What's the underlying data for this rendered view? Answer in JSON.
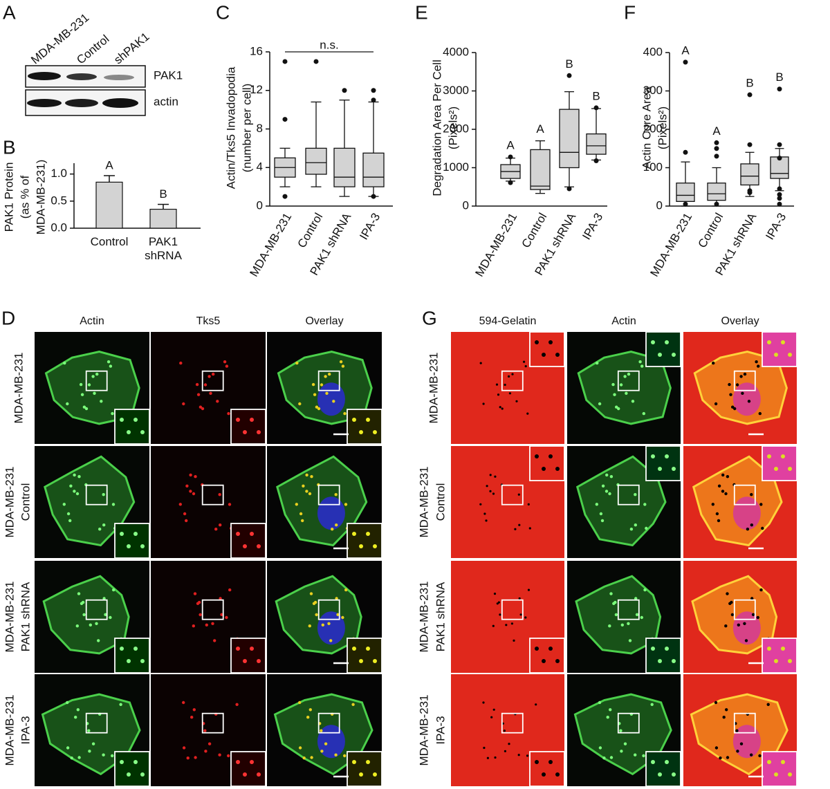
{
  "blot": {
    "panel": "A",
    "lanes": [
      "MDA-MB-231",
      "Control",
      "shPAK1"
    ],
    "bands": [
      "PAK1",
      "actin"
    ]
  },
  "chart_data": [
    {
      "type": "bar",
      "panel": "B",
      "ylabel": [
        "PAK1 Protein",
        "(as % of",
        "MDA-MB-231)"
      ],
      "categories": [
        "Control",
        "PAK1 shRNA"
      ],
      "values": [
        0.85,
        0.35
      ],
      "errors": [
        0.12,
        0.09
      ],
      "letters": [
        "A",
        "B"
      ],
      "color": "#d3d3d3",
      "ylim": [
        0,
        1.2
      ],
      "yticks": [
        {
          "value": 0,
          "label": "0.0"
        },
        {
          "value": 0.5,
          "label": "0.5"
        },
        {
          "value": 1,
          "label": "1.0"
        }
      ]
    },
    {
      "type": "box",
      "panel": "C",
      "ylabel": [
        "Actin/Tks5 Invadopodia",
        "(number per cell)"
      ],
      "annotation": "n.s.",
      "categories": [
        "MDA-MB-231",
        "Control",
        "PAK1 shRNA",
        "IPA-3"
      ],
      "color": "#d3d3d3",
      "boxes": [
        {
          "whisker_low": 2,
          "q1": 3,
          "median": 4,
          "q3": 5,
          "whisker_high": 6,
          "outliers": [
            15,
            9,
            1
          ]
        },
        {
          "whisker_low": 2,
          "q1": 3.3,
          "median": 4.5,
          "q3": 6,
          "whisker_high": 10.8,
          "outliers": [
            15
          ]
        },
        {
          "whisker_low": 1,
          "q1": 2,
          "median": 3,
          "q3": 6,
          "whisker_high": 11,
          "outliers": [
            12
          ]
        },
        {
          "whisker_low": 1,
          "q1": 2,
          "median": 3,
          "q3": 5.5,
          "whisker_high": 10.8,
          "outliers": [
            12,
            11,
            1
          ]
        }
      ],
      "ylim": [
        0,
        16
      ],
      "yticks": [
        0,
        4,
        8,
        12,
        16
      ]
    },
    {
      "type": "box",
      "panel": "E",
      "ylabel": [
        "Degradation Area Per Cell",
        "(Pixels²)"
      ],
      "categories": [
        "MDA-MB-231",
        "Control",
        "PAK1 shRNA",
        "IPA-3"
      ],
      "letters": [
        "A",
        "A",
        "B",
        "B"
      ],
      "color": "#d3d3d3",
      "boxes": [
        {
          "whisker_low": 650,
          "q1": 720,
          "median": 900,
          "q3": 1080,
          "whisker_high": 1250,
          "outliers": [
            1280,
            610
          ]
        },
        {
          "whisker_low": 330,
          "q1": 430,
          "median": 520,
          "q3": 1470,
          "whisker_high": 1700,
          "outliers": []
        },
        {
          "whisker_low": 500,
          "q1": 1000,
          "median": 1400,
          "q3": 2520,
          "whisker_high": 2980,
          "outliers": [
            3400,
            450
          ]
        },
        {
          "whisker_low": 1200,
          "q1": 1350,
          "median": 1570,
          "q3": 1880,
          "whisker_high": 2540,
          "outliers": [
            2560,
            1180
          ]
        }
      ],
      "ylim": [
        0,
        4000
      ],
      "yticks": [
        0,
        1000,
        2000,
        3000,
        4000
      ]
    },
    {
      "type": "box",
      "panel": "F",
      "ylabel": [
        "Actin Core Area",
        "(Pixels²)"
      ],
      "categories": [
        "MDA-MB-231",
        "Control",
        "PAK1 shRNA",
        "IPA-3"
      ],
      "letters": [
        "A",
        "A",
        "B",
        "B"
      ],
      "color": "#d3d3d3",
      "boxes": [
        {
          "whisker_low": 0,
          "q1": 12,
          "median": 28,
          "q3": 60,
          "whisker_high": 115,
          "outliers": [
            375,
            140,
            5
          ]
        },
        {
          "whisker_low": 0,
          "q1": 15,
          "median": 32,
          "q3": 60,
          "whisker_high": 100,
          "outliers": [
            165,
            150,
            130,
            5
          ]
        },
        {
          "whisker_low": 25,
          "q1": 55,
          "median": 78,
          "q3": 110,
          "whisker_high": 140,
          "outliers": [
            290,
            160,
            40,
            35
          ]
        },
        {
          "whisker_low": 40,
          "q1": 72,
          "median": 85,
          "q3": 128,
          "whisker_high": 150,
          "outliers": [
            305,
            160,
            125,
            45,
            30,
            20,
            5
          ]
        }
      ],
      "ylim": [
        0,
        400
      ],
      "yticks": [
        0,
        100,
        200,
        300,
        400
      ]
    }
  ],
  "micrographs": [
    {
      "panel": "D",
      "columns": [
        "Actin",
        "Tks5",
        "Overlay"
      ],
      "rows": [
        [
          "MDA-MB-231"
        ],
        [
          "MDA-MB-231",
          "Control"
        ],
        [
          "MDA-MB-231",
          "PAK1 shRNA"
        ],
        [
          "MDA-MB-231",
          "IPA-3"
        ]
      ]
    },
    {
      "panel": "G",
      "columns": [
        "594-Gelatin",
        "Actin",
        "Overlay"
      ],
      "rows": [
        [
          "MDA-MB-231"
        ],
        [
          "MDA-MB-231",
          "Control"
        ],
        [
          "MDA-MB-231",
          "PAK1 shRNA"
        ],
        [
          "MDA-MB-231",
          "IPA-3"
        ]
      ]
    }
  ]
}
